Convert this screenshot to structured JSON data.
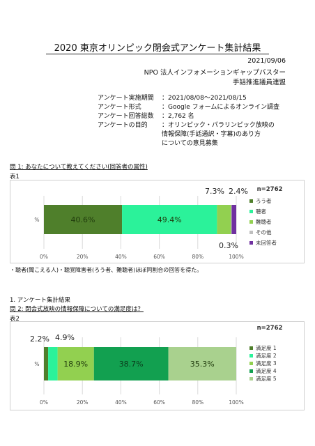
{
  "doc": {
    "title": "2020 東京オリンピック閉会式アンケート集計結果",
    "date": "2021/09/06",
    "org1": "NPO 法人インフォメーションギャップバスター",
    "org2": "手話推進議員連盟"
  },
  "info": [
    {
      "key": "アンケート実施期間",
      "value": "：2021/08/08～2021/08/15"
    },
    {
      "key": "アンケート形式",
      "value": "：Google フォームによるオンライン調査"
    },
    {
      "key": "アンケート回答総数",
      "value": "：2,762 名"
    },
    {
      "key": "アンケートの目的",
      "value": "：オリンピック・パラリンピック放映の"
    }
  ],
  "info_cont": [
    "情報保障(手話通訳・字幕)のあり方",
    "についての意見募集"
  ],
  "q1": {
    "heading": "問 1: あなたについて教えてください(回答者の属性)",
    "table_label": "表1",
    "note": "・聴者(聞こえる人)・聴覚障害者(ろう者、難聴者)ほぼ同割合の回答を得た。"
  },
  "section": {
    "heading": "1.  アンケート集計結果"
  },
  "q2": {
    "heading": "問 2: 閉会式放映の情報保障についての満足度は？",
    "table_label": "表2"
  },
  "chart_data": [
    {
      "type": "bar",
      "orientation": "horizontal-stacked",
      "n_label": "n=2762",
      "ylabel": "%",
      "categories": [
        "%"
      ],
      "series": [
        {
          "name": "ろう者",
          "values": [
            40.6
          ],
          "color": "#4f7f2b",
          "label": "40.6%"
        },
        {
          "name": "聴者",
          "values": [
            49.4
          ],
          "color": "#2bf29a",
          "label": "49.4%"
        },
        {
          "name": "難聴者",
          "values": [
            7.3
          ],
          "color": "#92d050",
          "label": "7.3%"
        },
        {
          "name": "その他",
          "values": [
            0.3
          ],
          "color": "#bfbfbf",
          "label": "0.3%"
        },
        {
          "name": "未回答者",
          "values": [
            2.4
          ],
          "color": "#7030a0",
          "label": "2.4%"
        }
      ],
      "xlim": [
        0,
        100
      ],
      "xticks": [
        "0%",
        "20%",
        "40%",
        "60%",
        "80%",
        "100%"
      ],
      "grid": true,
      "legend": "right"
    },
    {
      "type": "bar",
      "orientation": "horizontal-stacked",
      "n_label": "n=2762",
      "ylabel": "%",
      "categories": [
        "%"
      ],
      "series": [
        {
          "name": "満足度 1",
          "values": [
            2.2
          ],
          "color": "#4f7f2b",
          "label": "2.2%"
        },
        {
          "name": "満足度 2",
          "values": [
            4.9
          ],
          "color": "#2bf29a",
          "label": "4.9%"
        },
        {
          "name": "満足度 3",
          "values": [
            18.9
          ],
          "color": "#92d050",
          "label": "18.9%"
        },
        {
          "name": "満足度 4",
          "values": [
            38.7
          ],
          "color": "#12a050",
          "label": "38.7%"
        },
        {
          "name": "満足度 5",
          "values": [
            35.3
          ],
          "color": "#a9d18e",
          "label": "35.3%"
        }
      ],
      "xlim": [
        0,
        100
      ],
      "xticks": [
        "0%",
        "20%",
        "40%",
        "60%",
        "80%",
        "100%"
      ],
      "grid": true,
      "legend": "right"
    }
  ]
}
